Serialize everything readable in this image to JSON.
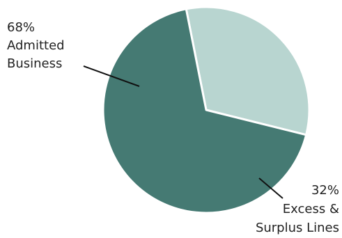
{
  "chart_data": {
    "type": "pie",
    "slices": [
      {
        "label_lines": [
          "68%",
          "Admitted",
          "Business"
        ],
        "value": 68,
        "color": "#457a73"
      },
      {
        "label_lines": [
          "32%",
          "Excess &",
          "Surplus Lines"
        ],
        "value": 32,
        "color": "#b8d5d0"
      }
    ],
    "legend": "none",
    "slice_border_color": "#ffffff",
    "leader_line_color": "#111111"
  }
}
